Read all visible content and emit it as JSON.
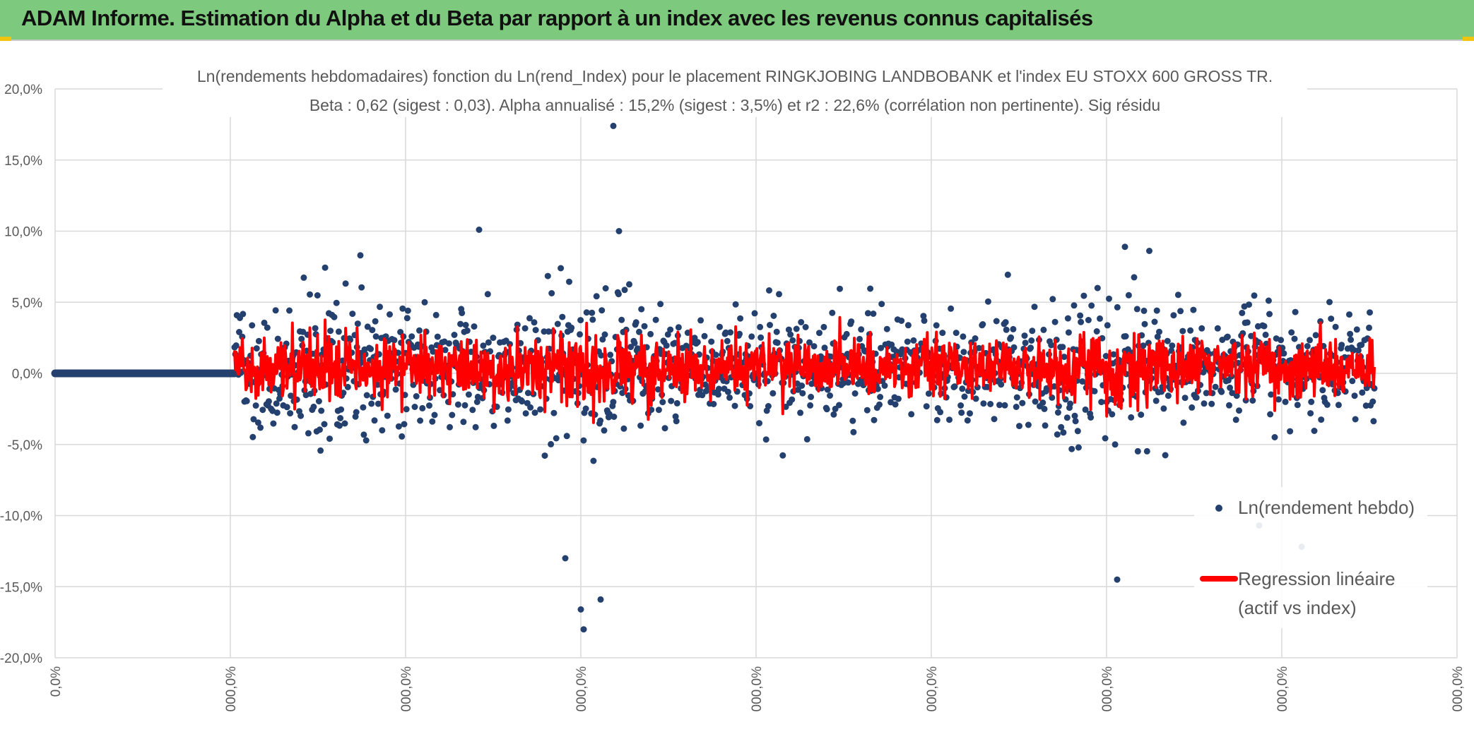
{
  "header": {
    "title": "ADAM Informe. Estimation du Alpha et du Beta par rapport à un index avec les revenus connus capitalisés"
  },
  "colors": {
    "header_bg": "#7dc97d",
    "scatter": "#24406e",
    "regression": "#ff0000",
    "grid": "#d9d9d9",
    "text": "#595959"
  },
  "chart_data": {
    "type": "scatter",
    "title": "Ln(rendements hebdomadaires) fonction du Ln(rend_Index) pour le placement RINGKJOBING LANDBOBANK et l'index EU STOXX 600 GROSS TR.",
    "subtitle": "Beta : 0,62 (sigest : 0,03). Alpha annualisé : 15,2% (sigest : 3,5%) et r2 : 22,6% (corrélation non pertinente). Sig résidu",
    "ylim": [
      -0.2,
      0.2
    ],
    "y_ticks": [
      "20,0%",
      "15,0%",
      "10,0%",
      "5,0%",
      "0,0%",
      "-5,0%",
      "-10,0%",
      "-15,0%",
      "-20,0%"
    ],
    "x_ticks": [
      "0,0%",
      "000,0%",
      "000,0%",
      "000,0%",
      "000,0%",
      "000,0%",
      "000,0%",
      "000,0%",
      "000,0%"
    ],
    "grid": true,
    "legend_position": "bottom-right",
    "series": [
      {
        "name": "Ln(rendement hebdo)",
        "style": "markers",
        "color": "#24406e"
      },
      {
        "name": "Regression linéaire (actif vs index)",
        "style": "line",
        "color": "#ff0000"
      }
    ],
    "legend": {
      "series1": "Ln(rendement hebdo)",
      "series2_line1": "Regression linéaire",
      "series2_line2": "(actif vs index)"
    },
    "notable_points": [
      {
        "y": 0.174
      },
      {
        "y": 0.101
      },
      {
        "y": 0.1
      },
      {
        "y": 0.089
      },
      {
        "y": 0.083
      },
      {
        "y": -0.18
      },
      {
        "y": -0.166
      },
      {
        "y": -0.159
      },
      {
        "y": -0.145
      },
      {
        "y": -0.13
      },
      {
        "y": -0.122
      },
      {
        "y": -0.107
      }
    ]
  }
}
